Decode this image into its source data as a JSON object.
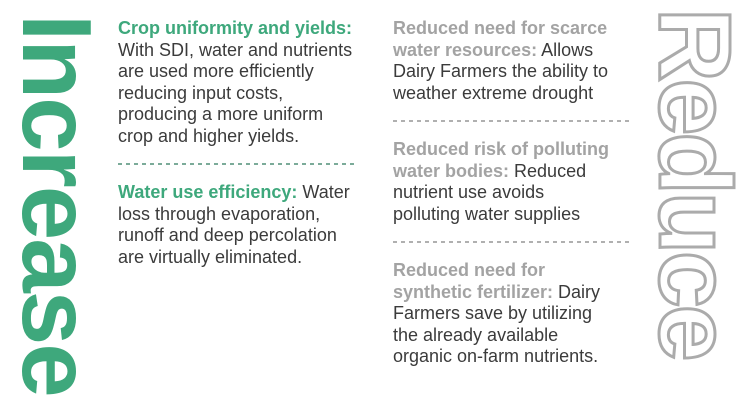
{
  "banners": {
    "increase": {
      "label": "Increase",
      "color": "#3EA87C"
    },
    "reduce": {
      "label": "Reduce",
      "outline_color": "#ABABAB"
    }
  },
  "increase_column": {
    "accent_color": "#3EA87C",
    "divider_color": "#7BAB99",
    "body_text_color": "#3B3B3B",
    "blocks": [
      {
        "title": [
          "Crop uniformity and yields:"
        ],
        "body": [
          "",
          "With SDI, water and nutrients",
          "are used more efficiently",
          "reducing input costs,",
          "producing a more uniform",
          "crop and higher yields."
        ]
      },
      {
        "title": [
          "Water use efficiency:"
        ],
        "body": [
          " Water",
          "loss through evaporation,",
          "runoff and deep percolation",
          "are virtually eliminated."
        ]
      }
    ]
  },
  "reduce_column": {
    "accent_color": "#A3A3A3",
    "divider_color": "#B0B0B0",
    "body_text_color": "#3B3B3B",
    "blocks": [
      {
        "title": [
          "Reduced need for scarce",
          "water resources:"
        ],
        "body": [
          " Allows",
          "Dairy Farmers the ability to",
          "weather extreme drought"
        ]
      },
      {
        "title": [
          "Reduced risk of polluting",
          "water bodies:"
        ],
        "body": [
          " Reduced",
          "nutrient use avoids",
          "polluting water supplies"
        ]
      },
      {
        "title": [
          "Reduced need for",
          "synthetic fertilizer:"
        ],
        "body": [
          " Dairy",
          "Farmers save by utilizing",
          "the already available",
          "organic on-farm nutrients."
        ]
      }
    ]
  }
}
